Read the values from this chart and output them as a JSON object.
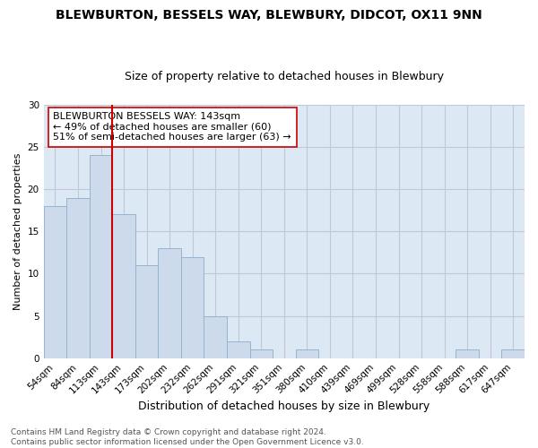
{
  "title": "BLEWBURTON, BESSELS WAY, BLEWBURY, DIDCOT, OX11 9NN",
  "subtitle": "Size of property relative to detached houses in Blewbury",
  "xlabel": "Distribution of detached houses by size in Blewbury",
  "ylabel": "Number of detached properties",
  "bin_labels": [
    "54sqm",
    "84sqm",
    "113sqm",
    "143sqm",
    "173sqm",
    "202sqm",
    "232sqm",
    "262sqm",
    "291sqm",
    "321sqm",
    "351sqm",
    "380sqm",
    "410sqm",
    "439sqm",
    "469sqm",
    "499sqm",
    "528sqm",
    "558sqm",
    "588sqm",
    "617sqm",
    "647sqm"
  ],
  "bar_values": [
    18,
    19,
    24,
    17,
    11,
    13,
    12,
    5,
    2,
    1,
    0,
    1,
    0,
    0,
    0,
    0,
    0,
    0,
    1,
    0,
    1
  ],
  "bar_color": "#ccdaeb",
  "bar_edge_color": "#96b4cf",
  "grid_color": "#c0c8d8",
  "bg_color": "#dce8f4",
  "vline_x_index": 3,
  "vline_color": "#cc0000",
  "annotation_text": "BLEWBURTON BESSELS WAY: 143sqm\n← 49% of detached houses are smaller (60)\n51% of semi-detached houses are larger (63) →",
  "annotation_box_color": "#ffffff",
  "annotation_box_edge": "#cc0000",
  "ylim": [
    0,
    30
  ],
  "yticks": [
    0,
    5,
    10,
    15,
    20,
    25,
    30
  ],
  "footer": "Contains HM Land Registry data © Crown copyright and database right 2024.\nContains public sector information licensed under the Open Government Licence v3.0.",
  "title_fontsize": 10,
  "subtitle_fontsize": 9,
  "xlabel_fontsize": 9,
  "ylabel_fontsize": 8,
  "tick_fontsize": 7.5,
  "annot_fontsize": 8,
  "footer_fontsize": 6.5
}
